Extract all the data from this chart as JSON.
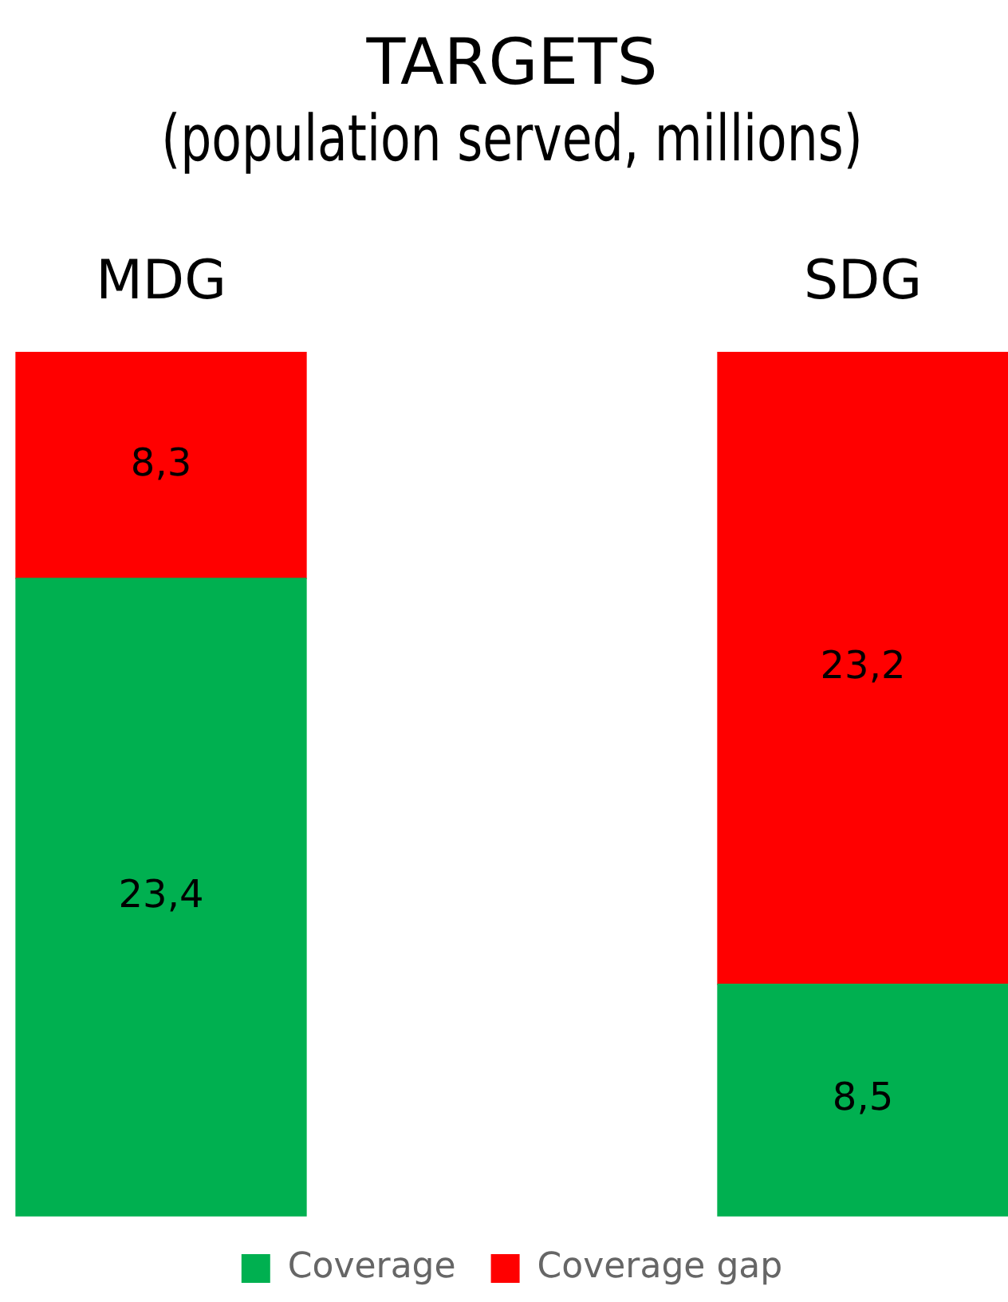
{
  "chart_data": {
    "type": "bar",
    "title": "TARGETS\n(population served, millions)",
    "categories": [
      "MDG",
      "SDG"
    ],
    "stacked": true,
    "legend": "bottom",
    "series": [
      {
        "name": "Coverage",
        "color": "#00b050",
        "values": [
          23.4,
          8.5
        ],
        "value_labels": [
          "23,4",
          "8,5"
        ]
      },
      {
        "name": "Coverage gap",
        "color": "#ff0000",
        "values": [
          8.3,
          23.2
        ],
        "value_labels": [
          "8,3",
          "23,2"
        ]
      }
    ]
  }
}
